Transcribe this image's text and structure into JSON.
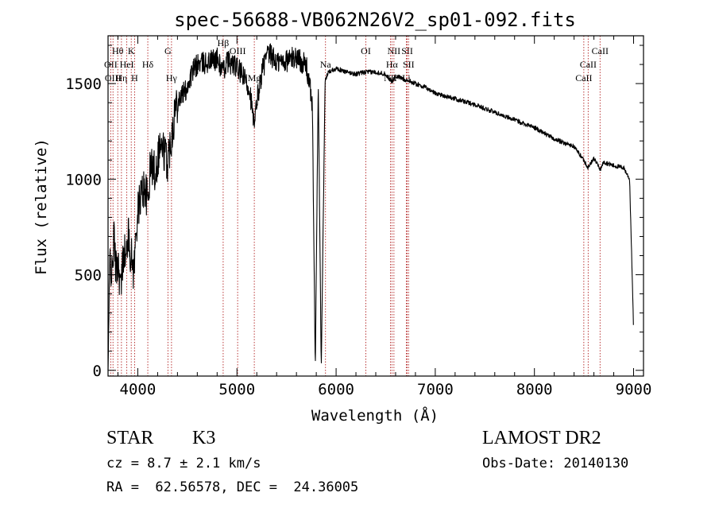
{
  "chart_data": {
    "type": "line",
    "title": "spec-56688-VB062N26V2_sp01-092.fits",
    "xlabel": "Wavelength (Å)",
    "ylabel": "Flux (relative)",
    "xlim": [
      3700,
      9100
    ],
    "ylim": [
      -30,
      1750
    ],
    "xticks": [
      4000,
      5000,
      6000,
      7000,
      8000,
      9000
    ],
    "yticks": [
      0,
      500,
      1000,
      1500
    ],
    "grid": false,
    "line_color": "#000000",
    "marker_color": "#b22222",
    "spectrum_anchors": [
      [
        3700,
        0
      ],
      [
        3720,
        600
      ],
      [
        3740,
        480
      ],
      [
        3760,
        700
      ],
      [
        3780,
        520
      ],
      [
        3800,
        580
      ],
      [
        3830,
        420
      ],
      [
        3860,
        650
      ],
      [
        3880,
        560
      ],
      [
        3900,
        720
      ],
      [
        3930,
        600
      ],
      [
        3960,
        520
      ],
      [
        3990,
        780
      ],
      [
        4030,
        920
      ],
      [
        4070,
        960
      ],
      [
        4101,
        880
      ],
      [
        4130,
        1080
      ],
      [
        4180,
        1040
      ],
      [
        4220,
        1180
      ],
      [
        4260,
        1150
      ],
      [
        4300,
        1090
      ],
      [
        4340,
        1230
      ],
      [
        4380,
        1380
      ],
      [
        4420,
        1430
      ],
      [
        4480,
        1460
      ],
      [
        4550,
        1560
      ],
      [
        4600,
        1600
      ],
      [
        4700,
        1610
      ],
      [
        4800,
        1630
      ],
      [
        4861,
        1560
      ],
      [
        4900,
        1620
      ],
      [
        4960,
        1600
      ],
      [
        5020,
        1570
      ],
      [
        5080,
        1520
      ],
      [
        5130,
        1470
      ],
      [
        5175,
        1260
      ],
      [
        5200,
        1410
      ],
      [
        5260,
        1580
      ],
      [
        5300,
        1640
      ],
      [
        5340,
        1650
      ],
      [
        5400,
        1610
      ],
      [
        5500,
        1620
      ],
      [
        5600,
        1640
      ],
      [
        5700,
        1590
      ],
      [
        5760,
        1400
      ],
      [
        5790,
        0
      ],
      [
        5820,
        1520
      ],
      [
        5850,
        0
      ],
      [
        5889,
        1510
      ],
      [
        5920,
        1560
      ],
      [
        6000,
        1580
      ],
      [
        6100,
        1560
      ],
      [
        6200,
        1550
      ],
      [
        6300,
        1560
      ],
      [
        6400,
        1560
      ],
      [
        6500,
        1550
      ],
      [
        6563,
        1510
      ],
      [
        6600,
        1540
      ],
      [
        6700,
        1520
      ],
      [
        6800,
        1500
      ],
      [
        6900,
        1480
      ],
      [
        7000,
        1450
      ],
      [
        7200,
        1420
      ],
      [
        7400,
        1390
      ],
      [
        7600,
        1350
      ],
      [
        7800,
        1310
      ],
      [
        8000,
        1270
      ],
      [
        8200,
        1210
      ],
      [
        8400,
        1170
      ],
      [
        8498,
        1100
      ],
      [
        8542,
        1060
      ],
      [
        8600,
        1110
      ],
      [
        8662,
        1050
      ],
      [
        8700,
        1090
      ],
      [
        8800,
        1070
      ],
      [
        8900,
        1060
      ],
      [
        8960,
        1000
      ],
      [
        8990,
        420
      ],
      [
        9000,
        200
      ]
    ],
    "noise_segments": [
      {
        "x0": 3700,
        "x1": 4400,
        "amplitude": 110
      },
      {
        "x0": 4400,
        "x1": 5800,
        "amplitude": 60
      },
      {
        "x0": 5800,
        "x1": 9000,
        "amplitude": 12
      }
    ],
    "line_markers": [
      {
        "label": "Hθ",
        "x": 3798,
        "row": 1
      },
      {
        "label": "OII",
        "x": 3727,
        "row": 2
      },
      {
        "label": "OIII",
        "x": 3750,
        "row": 3
      },
      {
        "label": "Hη",
        "x": 3835,
        "row": 3
      },
      {
        "label": "K",
        "x": 3934,
        "row": 1
      },
      {
        "label": "HeI",
        "x": 3889,
        "row": 2
      },
      {
        "label": "H",
        "x": 3968,
        "row": 3
      },
      {
        "label": "Hδ",
        "x": 4101,
        "row": 2
      },
      {
        "label": "G",
        "x": 4304,
        "row": 1
      },
      {
        "label": "Hγ",
        "x": 4340,
        "row": 3
      },
      {
        "label": "OIII",
        "x": 5007,
        "row": 1
      },
      {
        "label": "Hβ",
        "x": 4861,
        "row": 0
      },
      {
        "label": "Mg",
        "x": 5175,
        "row": 3
      },
      {
        "label": "Na",
        "x": 5893,
        "row": 2
      },
      {
        "label": "OI",
        "x": 6300,
        "row": 1
      },
      {
        "label": "NII",
        "x": 6583,
        "row": 1
      },
      {
        "label": "Hα",
        "x": 6563,
        "row": 2
      },
      {
        "label": "NII",
        "x": 6548,
        "row": 3
      },
      {
        "label": "SII",
        "x": 6717,
        "row": 1
      },
      {
        "label": "SII",
        "x": 6731,
        "row": 2
      },
      {
        "label": "Li",
        "x": 6708,
        "row": 3
      },
      {
        "label": "CaII",
        "x": 8662,
        "row": 1
      },
      {
        "label": "CaII",
        "x": 8542,
        "row": 2
      },
      {
        "label": "CaII",
        "x": 8498,
        "row": 3
      }
    ]
  },
  "info": {
    "class_label": "STAR",
    "subclass": "K3",
    "survey": "LAMOST DR2",
    "cz": "cz = 8.7 ± 2.1 km/s",
    "obs_date": "Obs-Date: 20140130",
    "coords": "RA =  62.56578, DEC =  24.36005"
  }
}
